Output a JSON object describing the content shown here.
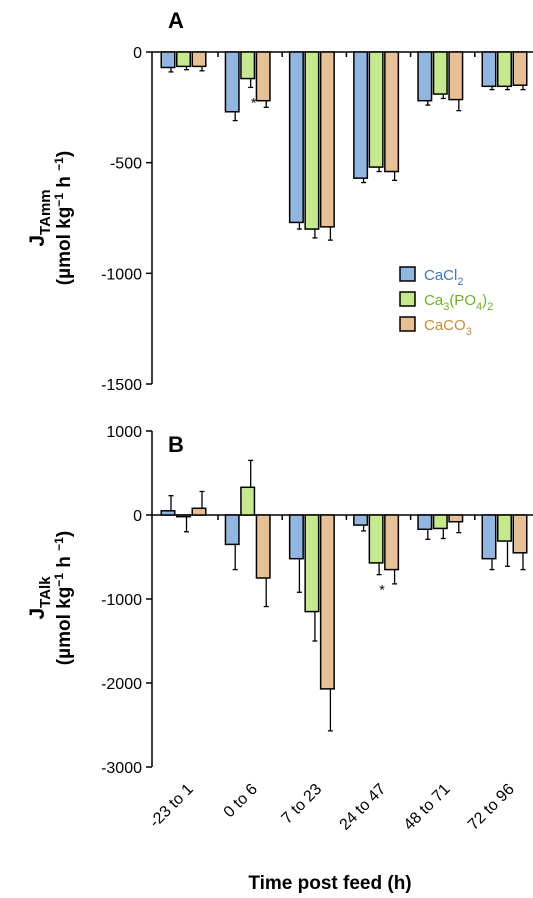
{
  "colors": {
    "cacl2": "#92b6e0",
    "ca3po42": "#c6e88e",
    "caco3": "#e8c095",
    "cacl2_text": "#3f78bf",
    "ca3po42_text": "#6fae2b",
    "caco3_text": "#c98c3c"
  },
  "x_axis": {
    "title": "Time post feed (h)",
    "categories": [
      "-23 to 1",
      "0 to 6",
      "7 to 23",
      "24 to 47",
      "48 to 71",
      "72 to 96"
    ]
  },
  "legend": {
    "items": [
      {
        "base": "CaCl",
        "sub": "2"
      },
      {
        "p1": "Ca",
        "s1": "3",
        "p2": "(PO",
        "s2": "4",
        "p3": ")",
        "s3": "2"
      },
      {
        "p1": "CaCO",
        "s1": "3"
      }
    ]
  },
  "panels": [
    {
      "letter": "A",
      "ylabel": {
        "j": "J",
        "sub": "TAmm",
        "unit_open": "(",
        "mu": "µ",
        "unit_mid": "mol kg",
        "sup1": "−1",
        "unit_h": " h ",
        "sup2": "−1",
        "unit_close": ")"
      },
      "ytick_labels": [
        "0",
        "-500",
        "-1000",
        "-1500"
      ],
      "star": "*"
    },
    {
      "letter": "B",
      "ylabel": {
        "j": "J",
        "sub": "TAlk",
        "unit_open": "(",
        "mu": "µ",
        "unit_mid": "mol kg",
        "sup1": "−1",
        "unit_h": " h ",
        "sup2": "−1",
        "unit_close": ")"
      },
      "ytick_labels": [
        "1000",
        "0",
        "-1000",
        "-2000",
        "-3000"
      ],
      "star": "*"
    }
  ],
  "chart_data": [
    {
      "type": "bar",
      "panel": "A",
      "categories": [
        "-23 to 1",
        "0 to 6",
        "7 to 23",
        "24 to 47",
        "48 to 71",
        "72 to 96"
      ],
      "series": [
        {
          "name": "CaCl2",
          "values": [
            -70,
            -270,
            -770,
            -570,
            -220,
            -155
          ],
          "errors": [
            20,
            40,
            30,
            20,
            20,
            15
          ]
        },
        {
          "name": "Ca3(PO4)2",
          "values": [
            -65,
            -120,
            -800,
            -520,
            -190,
            -155
          ],
          "errors": [
            15,
            40,
            40,
            20,
            20,
            15
          ]
        },
        {
          "name": "CaCO3",
          "values": [
            -65,
            -220,
            -790,
            -540,
            -215,
            -150
          ],
          "errors": [
            20,
            30,
            60,
            40,
            50,
            20
          ]
        }
      ],
      "xlabel": "Time post feed (h)",
      "ylabel": "JTAmm (µmol kg −1 h −1)",
      "ylim": [
        -1500,
        0
      ],
      "yticks": [
        0,
        -500,
        -1000,
        -1500
      ],
      "legend_position": "right",
      "annotations": [
        {
          "text": "*",
          "category": "0 to 6"
        }
      ]
    },
    {
      "type": "bar",
      "panel": "B",
      "categories": [
        "-23 to 1",
        "0 to 6",
        "7 to 23",
        "24 to 47",
        "48 to 71",
        "72 to 96"
      ],
      "series": [
        {
          "name": "CaCl2",
          "values": [
            50,
            -350,
            -520,
            -120,
            -170,
            -520
          ],
          "errors": [
            180,
            300,
            400,
            70,
            120,
            130
          ]
        },
        {
          "name": "Ca3(PO4)2",
          "values": [
            -20,
            330,
            -1150,
            -570,
            -160,
            -310
          ],
          "errors": [
            180,
            320,
            350,
            140,
            120,
            300
          ]
        },
        {
          "name": "CaCO3",
          "values": [
            80,
            -750,
            -2070,
            -650,
            -80,
            -450
          ],
          "errors": [
            200,
            340,
            500,
            170,
            130,
            200
          ]
        }
      ],
      "xlabel": "Time post feed (h)",
      "ylabel": "JTAlk (µmol kg −1 h −1)",
      "ylim": [
        -3000,
        1000
      ],
      "yticks": [
        1000,
        0,
        -1000,
        -2000,
        -3000
      ],
      "annotations": [
        {
          "text": "*",
          "category": "24 to 47"
        }
      ]
    }
  ]
}
